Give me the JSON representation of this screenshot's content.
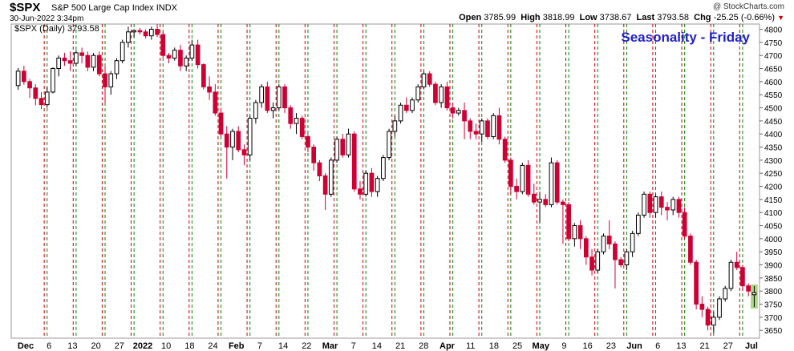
{
  "header": {
    "symbol": "$SPX",
    "description": "S&P 500 Large Cap Index",
    "exchange": "INDX",
    "date": "30-Jun-2022 3:34pm",
    "credit": "@ StockCharts.com",
    "open_label": "Open",
    "open": "3785.99",
    "high_label": "High",
    "high": "3818.99",
    "low_label": "Low",
    "low": "3738.67",
    "last_label": "Last",
    "last": "3793.58",
    "chg_label": "Chg",
    "chg": "-25.25 (-0.66%)"
  },
  "chart_data": {
    "type": "candlestick",
    "legend_label": "$SPX (Daily) 3793.58",
    "annotation": "Seasonality - Friday",
    "annotation_color": "#1f1fcc",
    "y_ticks": [
      3650,
      3700,
      3750,
      3800,
      3850,
      3900,
      3950,
      4000,
      4050,
      4100,
      4150,
      4200,
      4250,
      4300,
      4350,
      4400,
      4450,
      4500,
      4550,
      4600,
      4650,
      4700,
      4750,
      4800
    ],
    "ylim": [
      3620,
      4820
    ],
    "x_ticks": [
      "Dec",
      "6",
      "13",
      "20",
      "27",
      "2022",
      "10",
      "18",
      "24",
      "Feb",
      "7",
      "14",
      "22",
      "Mar",
      "7",
      "14",
      "21",
      "28",
      "Apr",
      "11",
      "18",
      "25",
      "May",
      "9",
      "16",
      "23",
      "Jun",
      "6",
      "13",
      "21",
      "27",
      "Jul"
    ],
    "colors": {
      "up": "#000000",
      "down": "#cc0033",
      "friday_line": "#cc0000",
      "monday_line": "#008800",
      "last_highlight": "#99cc66"
    },
    "candles": [
      [
        4585,
        4652,
        4569,
        4640
      ],
      [
        4640,
        4660,
        4588,
        4600
      ],
      [
        4600,
        4610,
        4538,
        4576
      ],
      [
        4576,
        4590,
        4509,
        4536
      ],
      [
        4536,
        4560,
        4495,
        4512
      ],
      [
        4512,
        4578,
        4500,
        4560
      ],
      [
        4560,
        4655,
        4555,
        4650
      ],
      [
        4650,
        4700,
        4620,
        4690
      ],
      [
        4690,
        4710,
        4660,
        4680
      ],
      [
        4680,
        4715,
        4640,
        4670
      ],
      [
        4670,
        4720,
        4660,
        4710
      ],
      [
        4710,
        4730,
        4670,
        4700
      ],
      [
        4700,
        4715,
        4640,
        4655
      ],
      [
        4655,
        4710,
        4640,
        4700
      ],
      [
        4700,
        4715,
        4620,
        4630
      ],
      [
        4630,
        4660,
        4520,
        4580
      ],
      [
        4580,
        4640,
        4550,
        4630
      ],
      [
        4630,
        4690,
        4610,
        4680
      ],
      [
        4680,
        4760,
        4670,
        4750
      ],
      [
        4750,
        4810,
        4730,
        4790
      ],
      [
        4790,
        4800,
        4770,
        4795
      ],
      [
        4795,
        4805,
        4780,
        4790
      ],
      [
        4790,
        4800,
        4765,
        4775
      ],
      [
        4775,
        4810,
        4760,
        4800
      ],
      [
        4800,
        4820,
        4770,
        4780
      ],
      [
        4780,
        4790,
        4690,
        4700
      ],
      [
        4700,
        4710,
        4670,
        4690
      ],
      [
        4690,
        4730,
        4680,
        4720
      ],
      [
        4720,
        4740,
        4640,
        4660
      ],
      [
        4660,
        4700,
        4640,
        4690
      ],
      [
        4690,
        4760,
        4680,
        4740
      ],
      [
        4740,
        4760,
        4650,
        4665
      ],
      [
        4665,
        4670,
        4570,
        4580
      ],
      [
        4580,
        4620,
        4530,
        4560
      ],
      [
        4560,
        4590,
        4470,
        4480
      ],
      [
        4480,
        4500,
        4390,
        4400
      ],
      [
        4400,
        4430,
        4230,
        4350
      ],
      [
        4350,
        4420,
        4300,
        4410
      ],
      [
        4410,
        4430,
        4330,
        4340
      ],
      [
        4340,
        4360,
        4280,
        4320
      ],
      [
        4320,
        4470,
        4300,
        4460
      ],
      [
        4460,
        4530,
        4440,
        4520
      ],
      [
        4520,
        4590,
        4500,
        4580
      ],
      [
        4580,
        4600,
        4480,
        4490
      ],
      [
        4490,
        4520,
        4460,
        4500
      ],
      [
        4500,
        4590,
        4490,
        4580
      ],
      [
        4580,
        4590,
        4480,
        4500
      ],
      [
        4500,
        4510,
        4420,
        4440
      ],
      [
        4440,
        4480,
        4400,
        4460
      ],
      [
        4460,
        4470,
        4380,
        4390
      ],
      [
        4390,
        4400,
        4330,
        4350
      ],
      [
        4350,
        4360,
        4260,
        4290
      ],
      [
        4290,
        4300,
        4220,
        4240
      ],
      [
        4240,
        4250,
        4110,
        4170
      ],
      [
        4170,
        4310,
        4160,
        4300
      ],
      [
        4300,
        4390,
        4290,
        4380
      ],
      [
        4380,
        4400,
        4310,
        4320
      ],
      [
        4320,
        4420,
        4310,
        4400
      ],
      [
        4400,
        4410,
        4180,
        4190
      ],
      [
        4190,
        4220,
        4150,
        4170
      ],
      [
        4170,
        4260,
        4160,
        4250
      ],
      [
        4250,
        4270,
        4160,
        4180
      ],
      [
        4180,
        4240,
        4160,
        4230
      ],
      [
        4230,
        4320,
        4220,
        4310
      ],
      [
        4310,
        4420,
        4300,
        4410
      ],
      [
        4410,
        4470,
        4390,
        4450
      ],
      [
        4450,
        4520,
        4440,
        4510
      ],
      [
        4510,
        4540,
        4480,
        4490
      ],
      [
        4490,
        4540,
        4480,
        4530
      ],
      [
        4530,
        4590,
        4520,
        4580
      ],
      [
        4580,
        4640,
        4570,
        4630
      ],
      [
        4630,
        4640,
        4580,
        4590
      ],
      [
        4590,
        4600,
        4510,
        4520
      ],
      [
        4520,
        4590,
        4500,
        4580
      ],
      [
        4580,
        4600,
        4490,
        4500
      ],
      [
        4500,
        4520,
        4460,
        4480
      ],
      [
        4480,
        4500,
        4470,
        4490
      ],
      [
        4490,
        4520,
        4380,
        4450
      ],
      [
        4450,
        4460,
        4380,
        4410
      ],
      [
        4410,
        4440,
        4380,
        4400
      ],
      [
        4400,
        4460,
        4370,
        4450
      ],
      [
        4450,
        4460,
        4380,
        4390
      ],
      [
        4390,
        4480,
        4380,
        4470
      ],
      [
        4470,
        4500,
        4360,
        4380
      ],
      [
        4380,
        4390,
        4290,
        4300
      ],
      [
        4300,
        4310,
        4170,
        4200
      ],
      [
        4200,
        4230,
        4150,
        4180
      ],
      [
        4180,
        4290,
        4170,
        4280
      ],
      [
        4280,
        4300,
        4160,
        4170
      ],
      [
        4170,
        4210,
        4130,
        4140
      ],
      [
        4140,
        4180,
        4060,
        4150
      ],
      [
        4150,
        4170,
        4120,
        4130
      ],
      [
        4130,
        4310,
        4120,
        4290
      ],
      [
        4290,
        4300,
        4130,
        4140
      ],
      [
        4140,
        4150,
        3980,
        4130
      ],
      [
        4130,
        4140,
        3990,
        4000
      ],
      [
        4000,
        4060,
        3970,
        4050
      ],
      [
        4050,
        4070,
        3960,
        4000
      ],
      [
        4000,
        4010,
        3900,
        3930
      ],
      [
        3930,
        3960,
        3860,
        3880
      ],
      [
        3880,
        3960,
        3870,
        3950
      ],
      [
        3950,
        4020,
        3940,
        4010
      ],
      [
        4010,
        4070,
        3960,
        3980
      ],
      [
        3980,
        3990,
        3810,
        3920
      ],
      [
        3920,
        3930,
        3890,
        3900
      ],
      [
        3900,
        3960,
        3880,
        3950
      ],
      [
        3950,
        4030,
        3930,
        4020
      ],
      [
        4020,
        4100,
        4010,
        4090
      ],
      [
        4090,
        4180,
        4080,
        4170
      ],
      [
        4170,
        4180,
        4080,
        4100
      ],
      [
        4100,
        4170,
        4080,
        4160
      ],
      [
        4160,
        4180,
        4090,
        4120
      ],
      [
        4120,
        4140,
        4070,
        4110
      ],
      [
        4110,
        4160,
        4090,
        4150
      ],
      [
        4150,
        4160,
        4080,
        4100
      ],
      [
        4100,
        4120,
        4000,
        4010
      ],
      [
        4010,
        4020,
        3900,
        3910
      ],
      [
        3910,
        3920,
        3730,
        3750
      ],
      [
        3750,
        3780,
        3700,
        3730
      ],
      [
        3730,
        3740,
        3650,
        3670
      ],
      [
        3670,
        3720,
        3640,
        3700
      ],
      [
        3700,
        3780,
        3690,
        3770
      ],
      [
        3770,
        3820,
        3760,
        3810
      ],
      [
        3810,
        3920,
        3800,
        3910
      ],
      [
        3910,
        3950,
        3880,
        3890
      ],
      [
        3890,
        3900,
        3800,
        3820
      ],
      [
        3820,
        3830,
        3780,
        3800
      ],
      [
        3786,
        3819,
        3739,
        3794
      ]
    ]
  }
}
